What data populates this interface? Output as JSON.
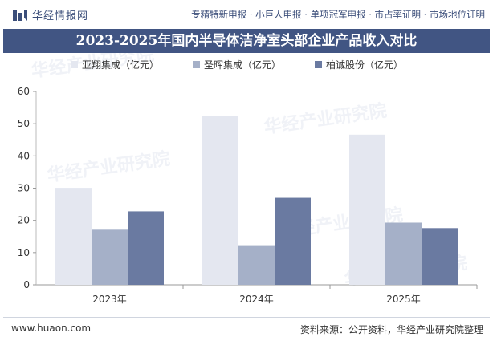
{
  "header": {
    "brand": "华经情报网",
    "tags": "专精特新申报 · 小巨人申报 · 单项冠军申报 · 市占率证明 · 市场地位证明"
  },
  "chart_data": {
    "type": "bar",
    "title": "2023-2025年国内半导体洁净室头部企业产品收入对比",
    "categories": [
      "2023年",
      "2024年",
      "2025年"
    ],
    "series": [
      {
        "name": "亚翔集成（亿元）",
        "values": [
          30.1,
          52.3,
          46.6
        ],
        "color": "#e4e7f0"
      },
      {
        "name": "圣晖集成（亿元）",
        "values": [
          17.1,
          12.3,
          19.3
        ],
        "color": "#a5b0c8"
      },
      {
        "name": "柏诚股份（亿元）",
        "values": [
          22.8,
          27.0,
          17.6
        ],
        "color": "#6a7aa1"
      }
    ],
    "ylim": [
      0,
      60
    ],
    "yticks": [
      0,
      10,
      20,
      30,
      40,
      50,
      60
    ],
    "legend": "top",
    "grid": false
  },
  "watermark": "华经产业研究院",
  "footer": {
    "site": "www.huaon.com",
    "source": "资料来源：公开资料，华经产业研究院整理"
  }
}
